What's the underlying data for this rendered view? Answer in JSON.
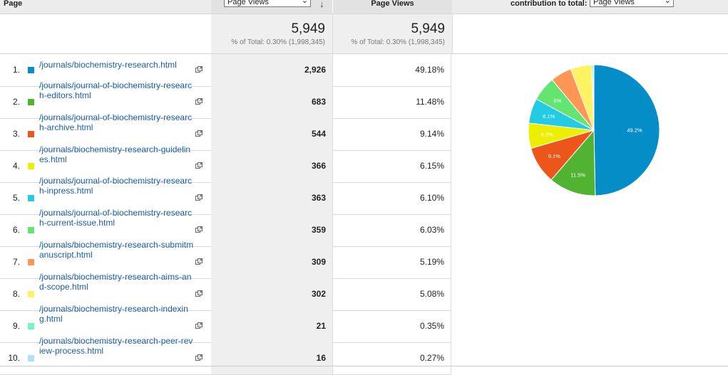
{
  "header": {
    "page_label": "Page",
    "metric_select": "Page Views",
    "col3_label": "Page Views",
    "contribution_label": "contribution to total:",
    "contribution_select": "Page Views"
  },
  "totals": {
    "views": "5,949",
    "views_pct": "% of Total: 0.30% (1,998,345)",
    "views2": "5,949",
    "views2_pct": "% of Total: 0.30% (1,998,345)"
  },
  "rows": [
    {
      "n": "1.",
      "url": "/journals/biochemistry-research.html",
      "views": "2,926",
      "pct": "49.18%",
      "color": "#058dc7"
    },
    {
      "n": "2.",
      "url": "/journals/journal-of-biochemistry-research-editors.html",
      "views": "683",
      "pct": "11.48%",
      "color": "#50b432"
    },
    {
      "n": "3.",
      "url": "/journals/journal-of-biochemistry-research-archive.html",
      "views": "544",
      "pct": "9.14%",
      "color": "#ed561b"
    },
    {
      "n": "4.",
      "url": "/journals/biochemistry-research-guidelines.html",
      "views": "366",
      "pct": "6.15%",
      "color": "#edef00"
    },
    {
      "n": "5.",
      "url": "/journals/journal-of-biochemistry-research-inpress.html",
      "views": "363",
      "pct": "6.10%",
      "color": "#24cbe5"
    },
    {
      "n": "6.",
      "url": "/journals/journal-of-biochemistry-research-current-issue.html",
      "views": "359",
      "pct": "6.03%",
      "color": "#64e572"
    },
    {
      "n": "7.",
      "url": "/journals/biochemistry-research-submitmanuscript.html",
      "views": "309",
      "pct": "5.19%",
      "color": "#ff9655"
    },
    {
      "n": "8.",
      "url": "/journals/biochemistry-research-aims-and-scope.html",
      "views": "302",
      "pct": "5.08%",
      "color": "#fff263"
    },
    {
      "n": "9.",
      "url": "/journals/biochemistry-research-indexing.html",
      "views": "21",
      "pct": "0.35%",
      "color": "#6af9c4"
    },
    {
      "n": "10.",
      "url": "/journals/biochemistry-research-peer-review-process.html",
      "views": "16",
      "pct": "0.27%",
      "color": "#b2deff"
    }
  ],
  "chart_data": {
    "type": "pie",
    "categories": [
      "/journals/biochemistry-research.html",
      "/journals/journal-of-biochemistry-research-editors.html",
      "/journals/journal-of-biochemistry-research-archive.html",
      "/journals/biochemistry-research-guidelines.html",
      "/journals/journal-of-biochemistry-research-inpress.html",
      "/journals/journal-of-biochemistry-research-current-issue.html",
      "/journals/biochemistry-research-submitmanuscript.html",
      "/journals/biochemistry-research-aims-and-scope.html",
      "/journals/biochemistry-research-indexing.html",
      "/journals/biochemistry-research-peer-review-process.html"
    ],
    "values": [
      49.18,
      11.48,
      9.14,
      6.15,
      6.1,
      6.03,
      5.19,
      5.08,
      0.35,
      0.27
    ],
    "slice_labels": [
      "49.2%",
      "11.5%",
      "9.1%",
      "6.2%",
      "6.1%",
      "6%",
      "",
      "",
      "",
      ""
    ],
    "colors": [
      "#058dc7",
      "#50b432",
      "#ed561b",
      "#edef00",
      "#24cbe5",
      "#64e572",
      "#ff9655",
      "#fff263",
      "#6af9c4",
      "#b2deff"
    ]
  }
}
